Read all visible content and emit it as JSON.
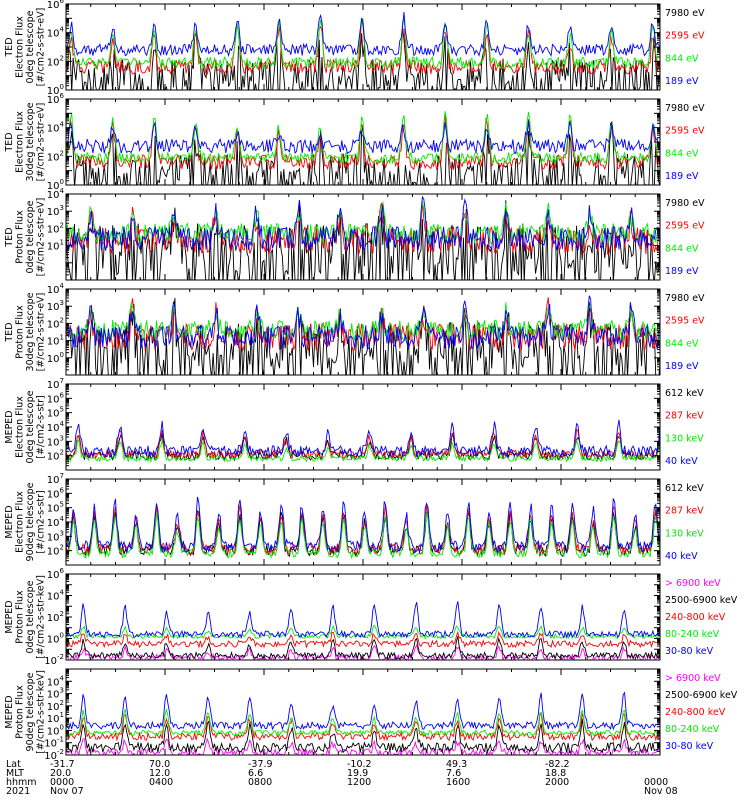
{
  "chart_data": {
    "type": "line",
    "x_axis": {
      "row_labels": [
        "Lat",
        "MLT",
        "hhmm",
        "2021"
      ],
      "ticks": [
        {
          "hour": 0,
          "lat": "-31.7",
          "mlt": "20.0",
          "hhmm": "0000",
          "date": "Nov 07"
        },
        {
          "hour": 4,
          "lat": "70.0",
          "mlt": "12.0",
          "hhmm": "0400",
          "date": ""
        },
        {
          "hour": 8,
          "lat": "-37.9",
          "mlt": "6.6",
          "hhmm": "0800",
          "date": ""
        },
        {
          "hour": 12,
          "lat": "-10.2",
          "mlt": "19.9",
          "hhmm": "1200",
          "date": ""
        },
        {
          "hour": 16,
          "lat": "49.3",
          "mlt": "7.6",
          "hhmm": "1600",
          "date": ""
        },
        {
          "hour": 20,
          "lat": "-82.2",
          "mlt": "18.8",
          "hhmm": "2000",
          "date": ""
        },
        {
          "hour": 24,
          "lat": "",
          "mlt": "",
          "hhmm": "0000",
          "date": "Nov 08"
        }
      ],
      "xlim_hours": [
        0,
        24
      ]
    },
    "colors": {
      "black": "#000000",
      "red": "#ff0000",
      "green": "#00ee00",
      "blue": "#0000ff",
      "magenta": "#ff00ff"
    },
    "panels": [
      {
        "ylabel": [
          "TED",
          "Electron Flux",
          "0deg telescope",
          "[#/cm2-s-str-eV]"
        ],
        "log_scale": true,
        "ylim_exp": [
          0,
          6
        ],
        "tick_exps": [
          0,
          2,
          4,
          6
        ],
        "series": [
          {
            "name": "7980 eV",
            "color": "black",
            "base_exp": 1.0,
            "peak_exp": 3.8,
            "noise": 1.2,
            "period_h": 1.68,
            "phase_h": 0.2
          },
          {
            "name": "2595 eV",
            "color": "red",
            "base_exp": 1.6,
            "peak_exp": 4.6,
            "noise": 0.5,
            "period_h": 1.68,
            "phase_h": 0.2
          },
          {
            "name": "844 eV",
            "color": "green",
            "base_exp": 1.9,
            "peak_exp": 5.0,
            "noise": 0.4,
            "period_h": 1.68,
            "phase_h": 0.2
          },
          {
            "name": "189 eV",
            "color": "blue",
            "base_exp": 2.8,
            "peak_exp": 5.2,
            "noise": 0.4,
            "period_h": 1.68,
            "phase_h": 0.2
          }
        ]
      },
      {
        "ylabel": [
          "TED",
          "Electron Flux",
          "30deg telescope",
          "[#/cm2-s-str-eV]"
        ],
        "log_scale": true,
        "ylim_exp": [
          0,
          6
        ],
        "tick_exps": [
          0,
          2,
          4,
          6
        ],
        "series": [
          {
            "name": "7980 eV",
            "color": "black",
            "base_exp": 1.0,
            "peak_exp": 3.8,
            "noise": 1.2,
            "period_h": 1.68,
            "phase_h": 0.2
          },
          {
            "name": "2595 eV",
            "color": "red",
            "base_exp": 1.6,
            "peak_exp": 4.6,
            "noise": 0.5,
            "period_h": 1.68,
            "phase_h": 0.2
          },
          {
            "name": "844 eV",
            "color": "green",
            "base_exp": 1.9,
            "peak_exp": 5.0,
            "noise": 0.4,
            "period_h": 1.68,
            "phase_h": 0.2
          },
          {
            "name": "189 eV",
            "color": "blue",
            "base_exp": 2.7,
            "peak_exp": 4.2,
            "noise": 0.5,
            "period_h": 1.68,
            "phase_h": 0.2
          }
        ]
      },
      {
        "ylabel": [
          "TED",
          "Proton Flux",
          "0deg telescope",
          "[#/cm2-s-str-eV]"
        ],
        "log_scale": true,
        "ylim_exp": [
          -1,
          4
        ],
        "tick_exps": [
          1,
          2,
          3,
          4
        ],
        "series": [
          {
            "name": "7980 eV",
            "color": "black",
            "base_exp": 0.8,
            "peak_exp": 2.6,
            "noise": 1.5,
            "period_h": 1.68,
            "phase_h": 1.0
          },
          {
            "name": "2595 eV",
            "color": "red",
            "base_exp": 1.3,
            "peak_exp": 3.0,
            "noise": 0.8,
            "period_h": 1.68,
            "phase_h": 1.0
          },
          {
            "name": "844 eV",
            "color": "green",
            "base_exp": 1.7,
            "peak_exp": 3.2,
            "noise": 0.6,
            "period_h": 1.68,
            "phase_h": 1.0
          },
          {
            "name": "189 eV",
            "color": "blue",
            "base_exp": 1.4,
            "peak_exp": 3.4,
            "noise": 0.7,
            "period_h": 1.68,
            "phase_h": 1.0
          }
        ]
      },
      {
        "ylabel": [
          "TED",
          "Proton Flux",
          "30deg telescope",
          "[#/cm2-s-str-eV]"
        ],
        "log_scale": true,
        "ylim_exp": [
          -1,
          4
        ],
        "tick_exps": [
          0,
          1,
          2,
          3,
          4
        ],
        "series": [
          {
            "name": "7980 eV",
            "color": "black",
            "base_exp": 0.7,
            "peak_exp": 2.4,
            "noise": 1.4,
            "period_h": 1.68,
            "phase_h": 1.0
          },
          {
            "name": "2595 eV",
            "color": "red",
            "base_exp": 1.2,
            "peak_exp": 2.8,
            "noise": 0.8,
            "period_h": 1.68,
            "phase_h": 1.0
          },
          {
            "name": "844 eV",
            "color": "green",
            "base_exp": 1.6,
            "peak_exp": 2.9,
            "noise": 0.6,
            "period_h": 1.68,
            "phase_h": 1.0
          },
          {
            "name": "189 eV",
            "color": "blue",
            "base_exp": 1.2,
            "peak_exp": 3.1,
            "noise": 0.7,
            "period_h": 1.68,
            "phase_h": 1.0
          }
        ]
      },
      {
        "ylabel": [
          "MEPED",
          "Electron Flux",
          "0deg telescope",
          "[#/cm2-s-str]"
        ],
        "log_scale": true,
        "ylim_exp": [
          1,
          7
        ],
        "tick_exps": [
          2,
          3,
          4,
          5,
          6,
          7
        ],
        "series": [
          {
            "name": "612 keV",
            "color": "black",
            "base_exp": 2.0,
            "peak_exp": 3.5,
            "noise": 0.3,
            "period_h": 1.68,
            "phase_h": 0.5
          },
          {
            "name": "287 keV",
            "color": "red",
            "base_exp": 2.1,
            "peak_exp": 3.7,
            "noise": 0.3,
            "period_h": 1.68,
            "phase_h": 0.5
          },
          {
            "name": "130 keV",
            "color": "green",
            "base_exp": 1.8,
            "peak_exp": 3.0,
            "noise": 0.2,
            "period_h": 1.68,
            "phase_h": 0.5
          },
          {
            "name": "40 keV",
            "color": "blue",
            "base_exp": 2.3,
            "peak_exp": 4.2,
            "noise": 0.4,
            "period_h": 1.68,
            "phase_h": 0.5
          }
        ]
      },
      {
        "ylabel": [
          "MEPED",
          "Electron Flux",
          "90deg telescope",
          "[#/cm2-s-str]"
        ],
        "log_scale": true,
        "ylim_exp": [
          1,
          7
        ],
        "tick_exps": [
          2,
          3,
          4,
          5,
          6,
          7
        ],
        "series": [
          {
            "name": "612 keV",
            "color": "black",
            "base_exp": 2.0,
            "peak_exp": 4.6,
            "noise": 0.4,
            "period_h": 0.84,
            "phase_h": 0.3
          },
          {
            "name": "287 keV",
            "color": "red",
            "base_exp": 2.1,
            "peak_exp": 5.0,
            "noise": 0.4,
            "period_h": 0.84,
            "phase_h": 0.3
          },
          {
            "name": "130 keV",
            "color": "green",
            "base_exp": 1.8,
            "peak_exp": 4.4,
            "noise": 0.3,
            "period_h": 0.84,
            "phase_h": 0.3
          },
          {
            "name": "40 keV",
            "color": "blue",
            "base_exp": 2.3,
            "peak_exp": 5.6,
            "noise": 0.4,
            "period_h": 0.84,
            "phase_h": 0.3
          }
        ]
      },
      {
        "ylabel": [
          "MEPED",
          "Proton Flux",
          "0deg telescope",
          "[#/cm2-s-str-keV]"
        ],
        "log_scale": true,
        "ylim_exp": [
          -2,
          6
        ],
        "tick_exps": [
          -2,
          0,
          2,
          4,
          6
        ],
        "series": [
          {
            "name": "> 6900 keV",
            "color": "magenta",
            "base_exp": -1.8,
            "peak_exp": -0.8,
            "noise": 0.3,
            "period_h": 1.68,
            "phase_h": 0.7
          },
          {
            "name": "2500-6900 keV",
            "color": "black",
            "base_exp": -1.6,
            "peak_exp": 0.0,
            "noise": 0.3,
            "period_h": 1.68,
            "phase_h": 0.7
          },
          {
            "name": "240-800 keV",
            "color": "red",
            "base_exp": -0.5,
            "peak_exp": 0.6,
            "noise": 0.3,
            "period_h": 1.68,
            "phase_h": 0.7
          },
          {
            "name": "80-240 keV",
            "color": "green",
            "base_exp": 0.2,
            "peak_exp": 1.2,
            "noise": 0.2,
            "period_h": 1.68,
            "phase_h": 0.7
          },
          {
            "name": "30-80 keV",
            "color": "blue",
            "base_exp": 0.4,
            "peak_exp": 3.4,
            "noise": 0.3,
            "period_h": 1.68,
            "phase_h": 0.7
          }
        ]
      },
      {
        "ylabel": [
          "MEPED",
          "Proton Flux",
          "90deg telescope",
          "[#/cm2-s-str-keV]"
        ],
        "log_scale": true,
        "ylim_exp": [
          -2,
          5
        ],
        "tick_exps": [
          -2,
          -1,
          0,
          1,
          2,
          3,
          4
        ],
        "series": [
          {
            "name": "> 6900 keV",
            "color": "magenta",
            "base_exp": -1.8,
            "peak_exp": -0.8,
            "noise": 0.3,
            "period_h": 1.68,
            "phase_h": 0.7
          },
          {
            "name": "2500-6900 keV",
            "color": "black",
            "base_exp": -1.4,
            "peak_exp": 0.6,
            "noise": 0.4,
            "period_h": 1.68,
            "phase_h": 0.7
          },
          {
            "name": "240-800 keV",
            "color": "red",
            "base_exp": -0.5,
            "peak_exp": 1.2,
            "noise": 0.3,
            "period_h": 1.68,
            "phase_h": 0.7
          },
          {
            "name": "80-240 keV",
            "color": "green",
            "base_exp": -0.2,
            "peak_exp": 1.6,
            "noise": 0.2,
            "period_h": 1.68,
            "phase_h": 0.7
          },
          {
            "name": "30-80 keV",
            "color": "blue",
            "base_exp": 0.4,
            "peak_exp": 3.0,
            "noise": 0.3,
            "period_h": 1.68,
            "phase_h": 0.7
          }
        ]
      }
    ]
  }
}
